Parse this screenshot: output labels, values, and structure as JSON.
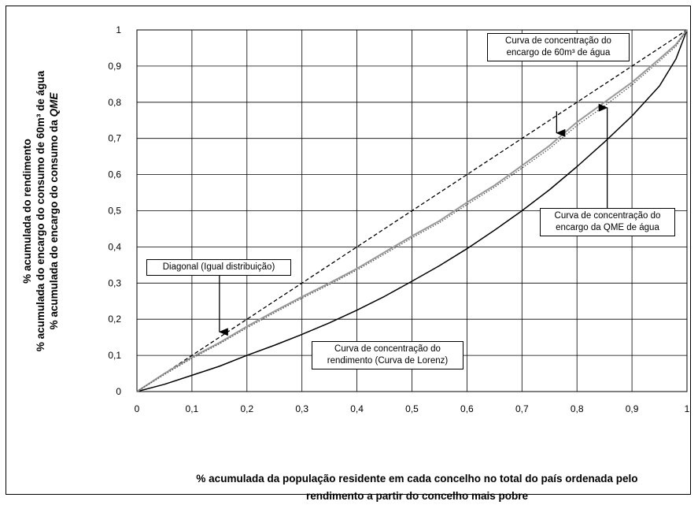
{
  "chart_data": {
    "type": "line",
    "xlabel_lines": [
      "% acumulada da população residente em cada concelho no total do país ordenada pelo",
      "rendimento a partir do concelho mais pobre"
    ],
    "ylabel_lines": [
      "% acumulada do rendimento",
      "% acumulada do encargo do consumo de 60m³ de água",
      "% acumulada do encargo do consumo da QME"
    ],
    "xlim": [
      0,
      1
    ],
    "ylim": [
      0,
      1
    ],
    "x_ticks": [
      "0",
      "0,1",
      "0,2",
      "0,3",
      "0,4",
      "0,5",
      "0,6",
      "0,7",
      "0,8",
      "0,9",
      "1"
    ],
    "y_ticks": [
      "0",
      "0,1",
      "0,2",
      "0,3",
      "0,4",
      "0,5",
      "0,6",
      "0,7",
      "0,8",
      "0,9",
      "1"
    ],
    "grid": true,
    "series": [
      {
        "style": "dashed",
        "color": "#000000",
        "points": [
          [
            0,
            0
          ],
          [
            1,
            1
          ]
        ]
      },
      {
        "style": "solid",
        "color": "#000000",
        "points": [
          [
            0,
            0
          ],
          [
            0.05,
            0.02
          ],
          [
            0.1,
            0.045
          ],
          [
            0.15,
            0.07
          ],
          [
            0.2,
            0.1
          ],
          [
            0.25,
            0.128
          ],
          [
            0.3,
            0.158
          ],
          [
            0.35,
            0.19
          ],
          [
            0.4,
            0.225
          ],
          [
            0.45,
            0.263
          ],
          [
            0.5,
            0.305
          ],
          [
            0.55,
            0.348
          ],
          [
            0.6,
            0.395
          ],
          [
            0.65,
            0.446
          ],
          [
            0.7,
            0.5
          ],
          [
            0.75,
            0.558
          ],
          [
            0.8,
            0.622
          ],
          [
            0.85,
            0.69
          ],
          [
            0.9,
            0.762
          ],
          [
            0.95,
            0.845
          ],
          [
            0.98,
            0.92
          ],
          [
            1,
            1
          ]
        ]
      },
      {
        "style": "solid",
        "color": "#999999",
        "points": [
          [
            0,
            0
          ],
          [
            0.05,
            0.05
          ],
          [
            0.1,
            0.095
          ],
          [
            0.15,
            0.135
          ],
          [
            0.2,
            0.18
          ],
          [
            0.25,
            0.222
          ],
          [
            0.3,
            0.262
          ],
          [
            0.35,
            0.3
          ],
          [
            0.4,
            0.34
          ],
          [
            0.45,
            0.385
          ],
          [
            0.5,
            0.43
          ],
          [
            0.55,
            0.472
          ],
          [
            0.6,
            0.523
          ],
          [
            0.65,
            0.57
          ],
          [
            0.7,
            0.625
          ],
          [
            0.75,
            0.68
          ],
          [
            0.8,
            0.745
          ],
          [
            0.85,
            0.8
          ],
          [
            0.9,
            0.855
          ],
          [
            0.95,
            0.92
          ],
          [
            0.98,
            0.96
          ],
          [
            1,
            1
          ]
        ]
      },
      {
        "style": "dotted",
        "color": "#555555",
        "points": [
          [
            0,
            0
          ],
          [
            0.05,
            0.047
          ],
          [
            0.1,
            0.092
          ],
          [
            0.15,
            0.132
          ],
          [
            0.2,
            0.176
          ],
          [
            0.25,
            0.218
          ],
          [
            0.3,
            0.258
          ],
          [
            0.35,
            0.296
          ],
          [
            0.4,
            0.336
          ],
          [
            0.45,
            0.38
          ],
          [
            0.5,
            0.425
          ],
          [
            0.55,
            0.467
          ],
          [
            0.6,
            0.517
          ],
          [
            0.65,
            0.565
          ],
          [
            0.7,
            0.618
          ],
          [
            0.75,
            0.672
          ],
          [
            0.8,
            0.736
          ],
          [
            0.85,
            0.79
          ],
          [
            0.9,
            0.848
          ],
          [
            0.95,
            0.914
          ],
          [
            0.98,
            0.955
          ],
          [
            1,
            1
          ]
        ]
      }
    ],
    "annotations": [
      {
        "lines": [
          "Curva de concentração do",
          "encargo de 60m³ de água"
        ],
        "arrow_from": [
          0.763,
          0.775
        ],
        "arrow_to": [
          0.763,
          0.715
        ]
      },
      {
        "lines": [
          "Curva de concentração do",
          "encargo da QME de água"
        ],
        "arrow_from": [
          0.855,
          0.505
        ],
        "arrow_to": [
          0.855,
          0.785
        ]
      },
      {
        "lines": [
          "Diagonal (Igual distribuição)"
        ],
        "arrow_from": [
          0.15,
          0.34
        ],
        "arrow_to": [
          0.15,
          0.165
        ]
      },
      {
        "lines": [
          "Curva de concentração do",
          "rendimento (Curva de Lorenz)"
        ],
        "arrow_from": null,
        "arrow_to": null
      }
    ]
  }
}
